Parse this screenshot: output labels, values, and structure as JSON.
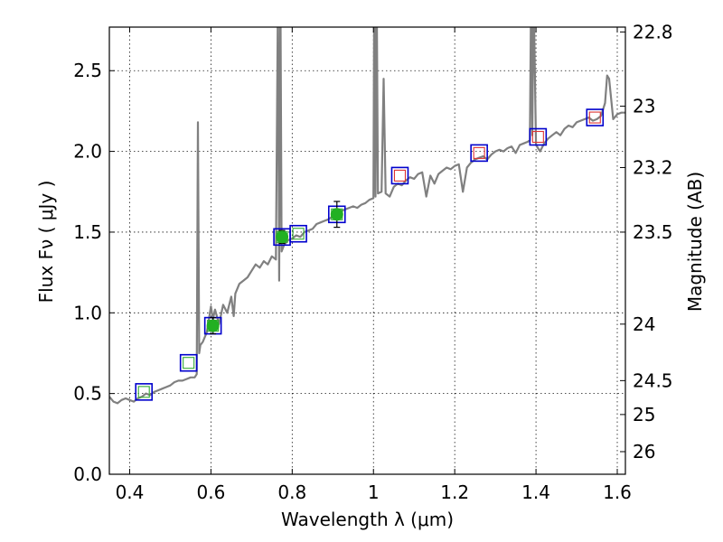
{
  "chart_data": {
    "type": "line",
    "xlabel": "Wavelength  λ (μm)",
    "ylabel": "Flux  Fν  ( μJy )",
    "ylabel_right": "Magnitude (AB)",
    "xlim": [
      0.35,
      1.62
    ],
    "ylim": [
      0.0,
      2.77
    ],
    "x_ticks": [
      "0.4",
      "0.6",
      "0.8",
      "1",
      "1.2",
      "1.4",
      "1.6"
    ],
    "x_tick_values": [
      0.4,
      0.6,
      0.8,
      1.0,
      1.2,
      1.4,
      1.6
    ],
    "y_ticks": [
      "0.0",
      "0.5",
      "1.0",
      "1.5",
      "2.0",
      "2.5"
    ],
    "y_tick_values": [
      0.0,
      0.5,
      1.0,
      1.5,
      2.0,
      2.5
    ],
    "right_ticks": [
      "22.8",
      "23",
      "23.2",
      "23.5",
      "24",
      "24.5",
      "25",
      "26"
    ],
    "right_tick_flux": [
      2.74,
      2.28,
      1.9,
      1.5,
      0.93,
      0.58,
      0.37,
      0.14
    ],
    "grid": true,
    "colors": {
      "spectrum": "#808080",
      "photometry_face": "#22b022",
      "model_green": "#33aa33",
      "model_red": "#dd3333",
      "box_edge": "#0000cc",
      "errorbar": "#000000"
    },
    "series": [
      {
        "kind": "spectrum",
        "x": [
          0.35,
          0.36,
          0.37,
          0.38,
          0.39,
          0.4,
          0.41,
          0.42,
          0.43,
          0.44,
          0.45,
          0.46,
          0.47,
          0.48,
          0.49,
          0.5,
          0.51,
          0.52,
          0.53,
          0.54,
          0.55,
          0.56,
          0.565,
          0.568,
          0.571,
          0.574,
          0.58,
          0.59,
          0.6,
          0.605,
          0.61,
          0.62,
          0.63,
          0.64,
          0.65,
          0.656,
          0.66,
          0.67,
          0.68,
          0.69,
          0.7,
          0.71,
          0.72,
          0.73,
          0.74,
          0.75,
          0.76,
          0.765,
          0.768,
          0.771,
          0.774,
          0.78,
          0.79,
          0.8,
          0.81,
          0.82,
          0.83,
          0.84,
          0.85,
          0.86,
          0.87,
          0.88,
          0.89,
          0.9,
          0.91,
          0.92,
          0.93,
          0.94,
          0.95,
          0.96,
          0.97,
          0.98,
          0.99,
          1.0,
          1.002,
          1.005,
          1.008,
          1.011,
          1.02,
          1.025,
          1.03,
          1.04,
          1.05,
          1.06,
          1.07,
          1.08,
          1.09,
          1.1,
          1.11,
          1.12,
          1.13,
          1.14,
          1.15,
          1.16,
          1.17,
          1.18,
          1.19,
          1.2,
          1.21,
          1.22,
          1.23,
          1.24,
          1.25,
          1.26,
          1.27,
          1.28,
          1.29,
          1.3,
          1.31,
          1.32,
          1.33,
          1.34,
          1.35,
          1.36,
          1.37,
          1.38,
          1.385,
          1.388,
          1.391,
          1.394,
          1.4,
          1.41,
          1.42,
          1.43,
          1.44,
          1.45,
          1.46,
          1.47,
          1.48,
          1.49,
          1.5,
          1.51,
          1.52,
          1.53,
          1.54,
          1.55,
          1.56,
          1.57,
          1.575,
          1.58,
          1.59,
          1.6,
          1.61,
          1.62
        ],
        "y": [
          0.48,
          0.45,
          0.44,
          0.46,
          0.47,
          0.46,
          0.45,
          0.47,
          0.48,
          0.5,
          0.49,
          0.51,
          0.52,
          0.53,
          0.54,
          0.55,
          0.57,
          0.58,
          0.58,
          0.59,
          0.6,
          0.6,
          0.62,
          2.18,
          0.75,
          0.8,
          0.82,
          0.88,
          1.04,
          0.96,
          1.02,
          0.93,
          1.05,
          1.0,
          1.1,
          0.98,
          1.12,
          1.18,
          1.2,
          1.22,
          1.26,
          1.3,
          1.28,
          1.32,
          1.3,
          1.35,
          1.33,
          3.0,
          1.2,
          3.0,
          1.38,
          1.42,
          1.45,
          1.46,
          1.48,
          1.47,
          1.5,
          1.51,
          1.52,
          1.55,
          1.56,
          1.57,
          1.58,
          1.6,
          1.62,
          1.63,
          1.64,
          1.65,
          1.66,
          1.65,
          1.67,
          1.68,
          1.7,
          1.71,
          3.0,
          1.72,
          3.0,
          1.74,
          1.75,
          2.45,
          1.74,
          1.72,
          1.78,
          1.8,
          1.79,
          1.82,
          1.84,
          1.83,
          1.86,
          1.87,
          1.72,
          1.85,
          1.8,
          1.86,
          1.88,
          1.9,
          1.89,
          1.91,
          1.92,
          1.75,
          1.9,
          1.93,
          1.95,
          1.96,
          1.97,
          1.95,
          1.98,
          2.0,
          2.01,
          2.0,
          2.02,
          2.03,
          1.99,
          2.04,
          2.05,
          2.06,
          2.07,
          3.0,
          2.1,
          3.0,
          2.04,
          2.0,
          2.05,
          2.08,
          2.1,
          2.12,
          2.1,
          2.14,
          2.16,
          2.15,
          2.18,
          2.19,
          2.2,
          2.21,
          2.19,
          2.2,
          2.22,
          2.3,
          2.47,
          2.45,
          2.2,
          2.23,
          2.24,
          2.24
        ]
      },
      {
        "kind": "model_boxes",
        "x": [
          0.435,
          0.545,
          0.605,
          0.775,
          0.815,
          0.91,
          1.065,
          1.26,
          1.405,
          1.545
        ],
        "y": [
          0.51,
          0.69,
          0.92,
          1.47,
          1.49,
          1.61,
          1.85,
          1.99,
          2.09,
          2.21
        ],
        "inner_color": [
          "green",
          "green",
          "green",
          "green",
          "green",
          "green",
          "red",
          "red",
          "red",
          "red"
        ]
      },
      {
        "kind": "photometry",
        "x": [
          0.605,
          0.775,
          0.91
        ],
        "y": [
          0.92,
          1.47,
          1.61
        ],
        "err": [
          0.05,
          0.04,
          0.08
        ]
      }
    ]
  }
}
